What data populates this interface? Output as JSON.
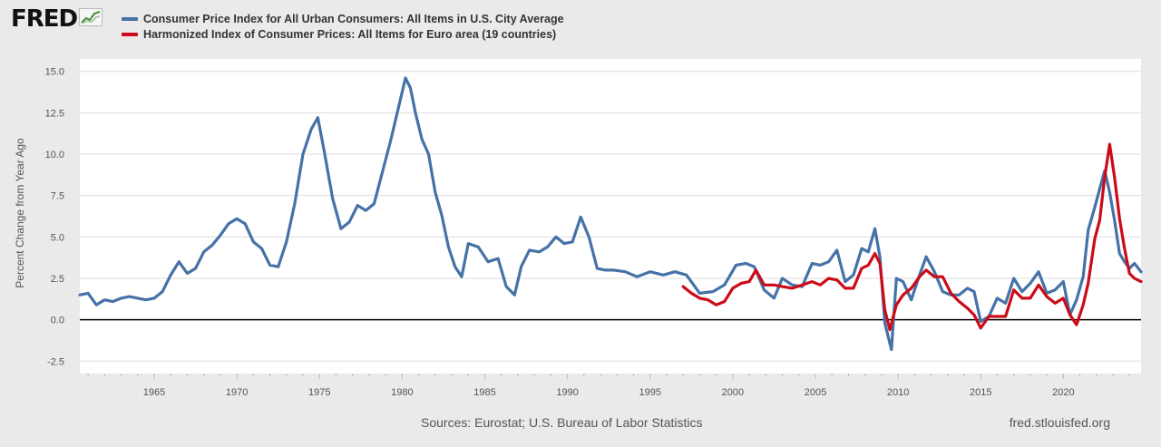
{
  "header": {
    "logo": "FRED"
  },
  "chart_data": {
    "type": "line",
    "ylabel": "Percent Change from Year Ago",
    "ylim": [
      -3.25,
      15.75
    ],
    "xlim": [
      1960.5,
      2024.7
    ],
    "y_ticks": [
      "15.0",
      "12.5",
      "10.0",
      "7.5",
      "5.0",
      "2.5",
      "0.0",
      "-2.5"
    ],
    "y_tick_values": [
      15.0,
      12.5,
      10.0,
      7.5,
      5.0,
      2.5,
      0.0,
      -2.5
    ],
    "x_ticks": [
      "1965",
      "1970",
      "1975",
      "1980",
      "1985",
      "1990",
      "1995",
      "2000",
      "2005",
      "2010",
      "2015",
      "2020"
    ],
    "x_tick_values": [
      1965,
      1970,
      1975,
      1980,
      1985,
      1990,
      1995,
      2000,
      2005,
      2010,
      2015,
      2020
    ],
    "grid": true,
    "zero_line": true,
    "series": [
      {
        "name": "Consumer Price Index for All Urban Consumers: All Items in U.S. City Average",
        "color": "#4572a7",
        "x": [
          1960.5,
          1961.0,
          1961.5,
          1962.0,
          1962.5,
          1963.0,
          1963.5,
          1964.0,
          1964.5,
          1965.0,
          1965.5,
          1966.0,
          1966.5,
          1967.0,
          1967.5,
          1968.0,
          1968.5,
          1969.0,
          1969.5,
          1970.0,
          1970.5,
          1971.0,
          1971.5,
          1972.0,
          1972.5,
          1973.0,
          1973.5,
          1974.0,
          1974.5,
          1974.9,
          1975.3,
          1975.8,
          1976.3,
          1976.8,
          1977.3,
          1977.8,
          1978.3,
          1978.8,
          1979.3,
          1979.8,
          1980.2,
          1980.5,
          1980.8,
          1981.2,
          1981.6,
          1982.0,
          1982.4,
          1982.8,
          1983.2,
          1983.6,
          1984.0,
          1984.6,
          1985.2,
          1985.8,
          1986.3,
          1986.8,
          1987.2,
          1987.7,
          1988.3,
          1988.8,
          1989.3,
          1989.8,
          1990.3,
          1990.8,
          1991.3,
          1991.8,
          1992.3,
          1992.8,
          1993.5,
          1994.2,
          1995.0,
          1995.8,
          1996.5,
          1997.2,
          1998.0,
          1998.8,
          1999.5,
          2000.2,
          2000.8,
          2001.3,
          2001.9,
          2002.5,
          2003.0,
          2003.6,
          2004.2,
          2004.8,
          2005.3,
          2005.8,
          2006.3,
          2006.8,
          2007.3,
          2007.8,
          2008.2,
          2008.6,
          2008.9,
          2009.2,
          2009.6,
          2009.9,
          2010.3,
          2010.8,
          2011.3,
          2011.7,
          2012.2,
          2012.7,
          2013.2,
          2013.7,
          2014.2,
          2014.6,
          2015.0,
          2015.5,
          2016.0,
          2016.5,
          2017.0,
          2017.5,
          2018.0,
          2018.5,
          2019.0,
          2019.5,
          2020.0,
          2020.4,
          2020.8,
          2021.2,
          2021.5,
          2021.9,
          2022.2,
          2022.5,
          2022.8,
          2023.1,
          2023.4,
          2023.7,
          2024.0,
          2024.3,
          2024.7
        ],
        "values": [
          1.5,
          1.6,
          0.9,
          1.2,
          1.1,
          1.3,
          1.4,
          1.3,
          1.2,
          1.3,
          1.7,
          2.7,
          3.5,
          2.8,
          3.1,
          4.1,
          4.5,
          5.1,
          5.8,
          6.1,
          5.8,
          4.7,
          4.3,
          3.3,
          3.2,
          4.7,
          7.0,
          10.0,
          11.5,
          12.2,
          10.1,
          7.3,
          5.5,
          5.9,
          6.9,
          6.6,
          7.0,
          8.9,
          10.8,
          12.9,
          14.6,
          14.0,
          12.5,
          10.9,
          10.0,
          7.7,
          6.3,
          4.4,
          3.2,
          2.6,
          4.6,
          4.4,
          3.5,
          3.7,
          2.0,
          1.5,
          3.2,
          4.2,
          4.1,
          4.4,
          5.0,
          4.6,
          4.7,
          6.2,
          5.0,
          3.1,
          3.0,
          3.0,
          2.9,
          2.6,
          2.9,
          2.7,
          2.9,
          2.7,
          1.6,
          1.7,
          2.1,
          3.3,
          3.4,
          3.2,
          1.8,
          1.3,
          2.5,
          2.1,
          2.0,
          3.4,
          3.3,
          3.5,
          4.2,
          2.3,
          2.7,
          4.3,
          4.1,
          5.5,
          3.8,
          -0.2,
          -1.8,
          2.5,
          2.3,
          1.2,
          2.7,
          3.8,
          2.9,
          1.7,
          1.5,
          1.5,
          1.9,
          1.7,
          -0.1,
          0.2,
          1.3,
          1.0,
          2.5,
          1.7,
          2.2,
          2.9,
          1.6,
          1.8,
          2.3,
          0.3,
          1.2,
          2.6,
          5.4,
          6.8,
          7.9,
          9.0,
          7.7,
          6.0,
          4.0,
          3.5,
          3.1,
          3.4,
          2.9
        ]
      },
      {
        "name": "Harmonized Index of Consumer Prices: All Items for Euro area (19 countries)",
        "color": "#cc0b18",
        "x": [
          1997.0,
          1997.5,
          1998.0,
          1998.5,
          1999.0,
          1999.5,
          2000.0,
          2000.5,
          2001.0,
          2001.4,
          2001.9,
          2002.5,
          2003.0,
          2003.6,
          2004.2,
          2004.8,
          2005.3,
          2005.8,
          2006.3,
          2006.8,
          2007.3,
          2007.8,
          2008.2,
          2008.6,
          2008.9,
          2009.2,
          2009.5,
          2009.9,
          2010.3,
          2010.8,
          2011.3,
          2011.7,
          2012.2,
          2012.7,
          2013.2,
          2013.7,
          2014.2,
          2014.6,
          2015.0,
          2015.5,
          2016.0,
          2016.5,
          2017.0,
          2017.5,
          2018.0,
          2018.5,
          2019.0,
          2019.5,
          2020.0,
          2020.4,
          2020.8,
          2021.2,
          2021.5,
          2021.9,
          2022.2,
          2022.5,
          2022.8,
          2023.1,
          2023.4,
          2023.7,
          2024.0,
          2024.3,
          2024.7
        ],
        "values": [
          2.0,
          1.6,
          1.3,
          1.2,
          0.9,
          1.1,
          1.9,
          2.2,
          2.3,
          3.0,
          2.1,
          2.1,
          2.0,
          1.9,
          2.1,
          2.3,
          2.1,
          2.5,
          2.4,
          1.9,
          1.9,
          3.1,
          3.3,
          4.0,
          3.4,
          0.6,
          -0.6,
          0.9,
          1.5,
          1.9,
          2.6,
          3.0,
          2.6,
          2.6,
          1.6,
          1.1,
          0.7,
          0.3,
          -0.5,
          0.2,
          0.2,
          0.2,
          1.8,
          1.3,
          1.3,
          2.1,
          1.4,
          1.0,
          1.3,
          0.3,
          -0.3,
          0.9,
          2.2,
          4.9,
          6.0,
          8.6,
          10.6,
          8.6,
          6.1,
          4.3,
          2.8,
          2.5,
          2.3
        ]
      }
    ]
  },
  "footer": {
    "sources": "Sources: Eurostat; U.S. Bureau of Labor Statistics",
    "credit": "fred.stlouisfed.org"
  }
}
